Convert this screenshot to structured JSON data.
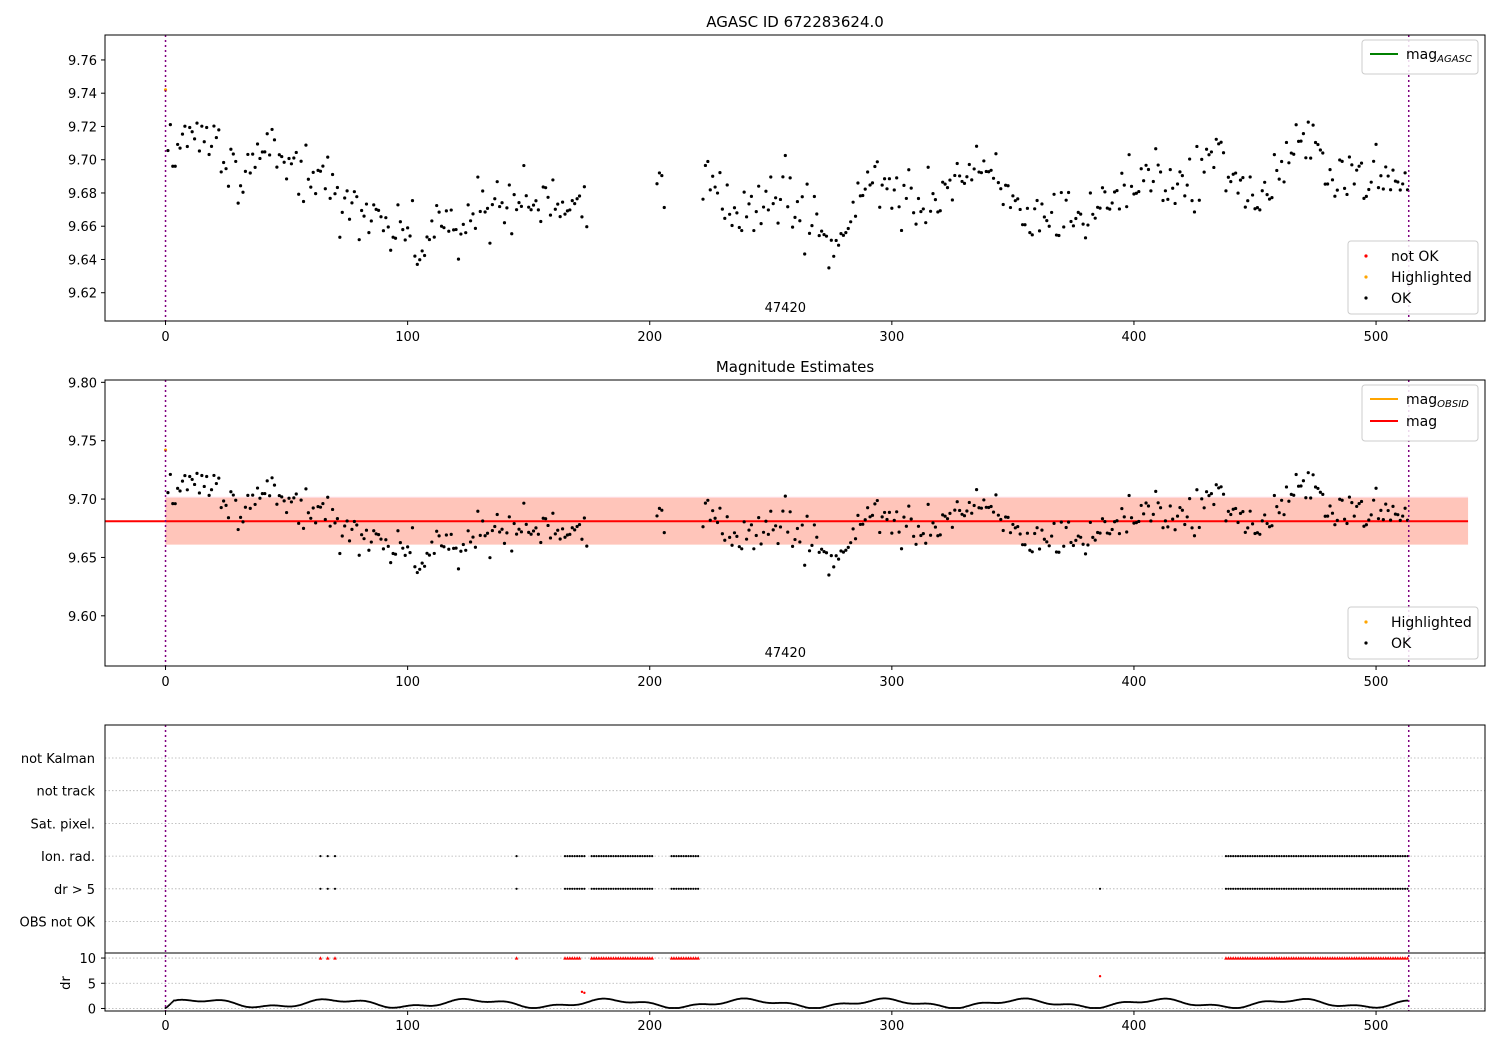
{
  "chart_data": [
    {
      "type": "scatter",
      "title": "AGASC ID 672283624.0",
      "xlim": [
        -25,
        545
      ],
      "ylim": [
        9.603,
        9.775
      ],
      "xticks": [
        0,
        100,
        200,
        300,
        400,
        500
      ],
      "yticks": [
        9.62,
        9.64,
        9.66,
        9.68,
        9.7,
        9.72,
        9.74,
        9.76
      ],
      "annotation": "47420",
      "vlines": [
        0,
        513.5
      ],
      "legend_lines": [
        {
          "base": "mag",
          "sub": "AGASC",
          "color": "#008000"
        }
      ],
      "legend_points": [
        {
          "label": "not OK",
          "color": "#ff0000"
        },
        {
          "label": "Highlighted",
          "color": "#ffa500"
        },
        {
          "label": "OK",
          "color": "#000000"
        }
      ],
      "highlighted": [
        [
          0,
          9.742
        ]
      ]
    },
    {
      "type": "scatter",
      "title": "Magnitude Estimates",
      "xlim": [
        -25,
        545
      ],
      "ylim": [
        9.557,
        9.802
      ],
      "xticks": [
        0,
        100,
        200,
        300,
        400,
        500
      ],
      "yticks": [
        9.6,
        9.65,
        9.7,
        9.75,
        9.8
      ],
      "annotation": "47420",
      "vlines": [
        0,
        513.5
      ],
      "mag_line": 9.681,
      "band_outer": [
        9.661,
        9.702
      ],
      "band_inner": [
        9.661,
        9.701
      ],
      "band_xrange": [
        0,
        538
      ],
      "legend_lines": [
        {
          "base": "mag",
          "sub": "OBSID",
          "color": "#ffa500"
        },
        {
          "base": "mag",
          "sub": "",
          "color": "#ff0000"
        }
      ],
      "legend_points": [
        {
          "label": "Highlighted",
          "color": "#ffa500"
        },
        {
          "label": "OK",
          "color": "#000000"
        }
      ],
      "highlighted": [
        [
          0,
          9.742
        ]
      ]
    },
    {
      "type": "scatter",
      "flag_labels": [
        "not Kalman",
        "not track",
        "Sat. pixel.",
        "Ion. rad.",
        "dr > 5",
        "OBS not OK"
      ],
      "flags": {
        "Ion. rad.": {
          "points": [
            64,
            67,
            70,
            145
          ],
          "ranges": [
            [
              165,
              173
            ],
            [
              176,
              201
            ],
            [
              209,
              220
            ],
            [
              438,
              513
            ]
          ]
        },
        "dr > 5": {
          "points": [
            64,
            67,
            70,
            145,
            386
          ],
          "ranges": [
            [
              165,
              173
            ],
            [
              176,
              201
            ],
            [
              209,
              220
            ],
            [
              438,
              513
            ]
          ]
        }
      },
      "dr_ylabel": "dr",
      "dr_yticks": [
        0,
        5,
        10
      ],
      "dr_ylim": [
        -0.5,
        11
      ],
      "xlim": [
        -25,
        545
      ],
      "xticks": [
        0,
        100,
        200,
        300,
        400,
        500
      ],
      "vlines": [
        0,
        513.5
      ],
      "dr_clipped": {
        "points": [
          64,
          67,
          70,
          145
        ],
        "ranges": [
          [
            165,
            171
          ],
          [
            176,
            201
          ],
          [
            209,
            220
          ],
          [
            438,
            513
          ]
        ]
      },
      "dr_outliers": [
        [
          172,
          3.3
        ],
        [
          173,
          3.1
        ],
        [
          386,
          6.4
        ]
      ]
    }
  ]
}
